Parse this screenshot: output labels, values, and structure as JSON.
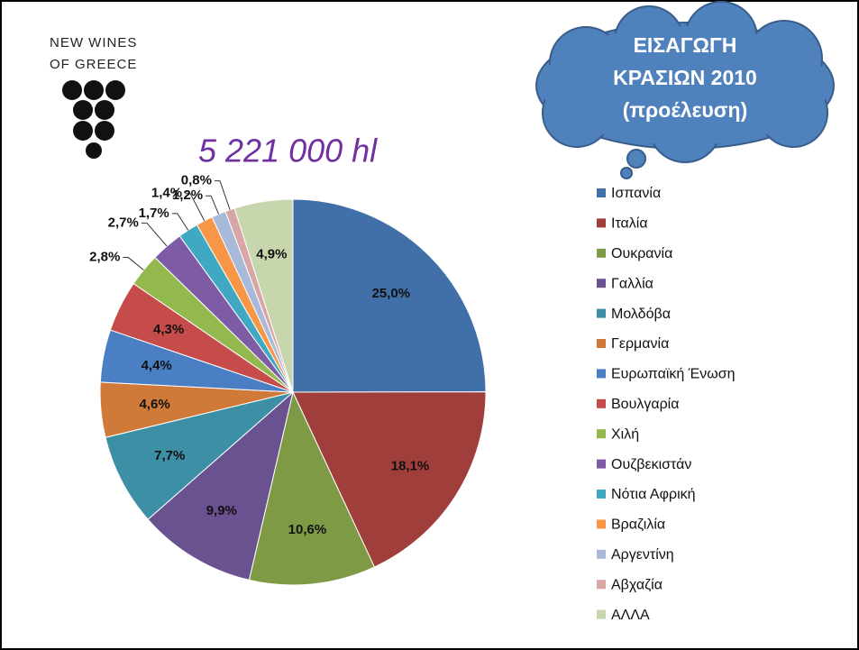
{
  "logo": [
    "NEW WINES",
    "OF GREECE"
  ],
  "chart_data": {
    "type": "pie",
    "title": [
      "ΕΙΣΑΓΩΓΗ",
      "ΚΡΑΣΙΩΝ 2010",
      "(προέλευση)"
    ],
    "subtitle": "5 221 000 hl",
    "categories": [
      "Ισπανία",
      "Ιταλία",
      "Ουκρανία",
      "Γαλλία",
      "Μολδόβα",
      "Γερμανία",
      "Ευρωπαϊκή Ένωση",
      "Βουλγαρία",
      "Χιλή",
      "Ουζβεκιστάν",
      "Νότια Αφρική",
      "Βραζιλία",
      "Αργεντίνη",
      "Αβχαζία",
      "ΑΛΛΑ"
    ],
    "values": [
      25.0,
      18.1,
      10.6,
      9.9,
      7.7,
      4.6,
      4.4,
      4.3,
      2.8,
      2.7,
      1.7,
      1.4,
      1.2,
      0.8,
      4.9
    ],
    "value_labels": [
      "25,0%",
      "18,1%",
      "10,6%",
      "9,9%",
      "7,7%",
      "4,6%",
      "4,4%",
      "4,3%",
      "2,8%",
      "2,7%",
      "1,7%",
      "1,4%",
      "1,2%",
      "0,8%",
      "4,9%"
    ],
    "colors": [
      "#4170A8",
      "#A03E3C",
      "#7F9A45",
      "#6A5291",
      "#3D8FA5",
      "#D07A3A",
      "#4A7FC4",
      "#C64B4B",
      "#93B84D",
      "#7D5CA5",
      "#41A8C3",
      "#F79646",
      "#A8B9D9",
      "#D9A6A6",
      "#C8D6AE"
    ],
    "legend": "right"
  }
}
